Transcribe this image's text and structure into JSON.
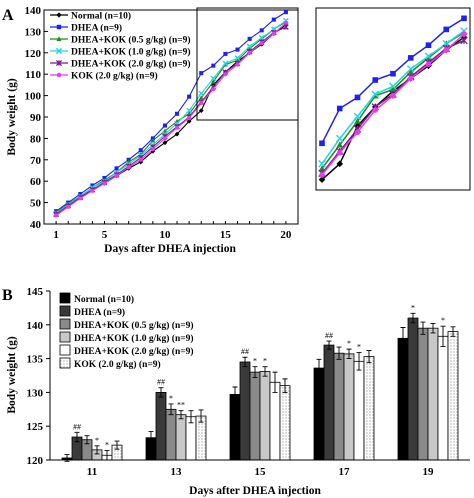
{
  "panel_a_letter": "A",
  "panel_b_letter": "B",
  "colors": {
    "normal": "#000000",
    "dhea": "#1f22ee",
    "kok05": "#1e8c1e",
    "kok10": "#22d6e0",
    "kok20": "#7a1e8a",
    "kok_only": "#e83ce8"
  },
  "chart_data": [
    {
      "type": "line",
      "panel": "A",
      "xlabel": "Days after DHEA injection",
      "ylabel": "Body weight (g)",
      "xlim": [
        0,
        21
      ],
      "ylim": [
        40,
        140
      ],
      "xticks": [
        1,
        5,
        10,
        15,
        20
      ],
      "yticks": [
        40,
        50,
        60,
        70,
        80,
        90,
        100,
        110,
        120,
        130,
        140
      ],
      "legend_position": "top-left",
      "inset": "zoom of days 12-20, top-right",
      "x": [
        1,
        2,
        3,
        4,
        5,
        6,
        7,
        8,
        9,
        10,
        11,
        12,
        13,
        14,
        15,
        16,
        17,
        18,
        19,
        20
      ],
      "series": [
        {
          "name": "Normal (n=10)",
          "marker": "diamond",
          "color": "#000000",
          "values": [
            45,
            48.5,
            52.5,
            56,
            59,
            62.5,
            66,
            69,
            74,
            78,
            82,
            88,
            93,
            105,
            111,
            116,
            120,
            124,
            129,
            133
          ]
        },
        {
          "name": "DHEA (n=9)",
          "marker": "square",
          "color": "#1f22ee",
          "values": [
            46,
            50,
            54,
            58,
            61.5,
            66,
            70,
            74.5,
            80,
            86,
            91.5,
            99.5,
            110.5,
            114,
            119.5,
            121.5,
            126.5,
            130.5,
            135.5,
            139
          ]
        },
        {
          "name": "DHEA+KOK (0.5 g/kg) (n=9)",
          "marker": "triangle",
          "color": "#1e8c1e",
          "values": [
            45.5,
            49.5,
            53,
            57,
            60.5,
            64,
            69,
            72.5,
            79,
            83.5,
            88,
            91.5,
            99,
            106.5,
            114.5,
            116.5,
            122,
            126.5,
            131,
            134.5
          ]
        },
        {
          "name": "DHEA+KOK (1.0 g/kg) (n=9)",
          "marker": "x",
          "color": "#22d6e0",
          "values": [
            45,
            49,
            53,
            57,
            60,
            64,
            68,
            72,
            77,
            82,
            87,
            93,
            101,
            108,
            115,
            117.5,
            123,
            127,
            131,
            135
          ]
        },
        {
          "name": "DHEA+KOK (2.0 g/kg) (n=9)",
          "marker": "star",
          "color": "#7a1e8a",
          "values": [
            44.5,
            48.5,
            52.5,
            56,
            59.5,
            63,
            67,
            71,
            76,
            81,
            85.5,
            90,
            97,
            104,
            111,
            115,
            120.5,
            125,
            129.5,
            132
          ]
        },
        {
          "name": "KOK (2.0 g/kg) (n=9)",
          "marker": "circle",
          "color": "#e83ce8",
          "values": [
            44,
            48,
            52,
            55.5,
            59,
            62.5,
            66.5,
            70,
            75,
            80,
            85,
            89.5,
            96.5,
            103,
            110,
            114.5,
            120,
            124.5,
            129,
            134
          ]
        }
      ]
    },
    {
      "type": "bar",
      "panel": "B",
      "xlabel": "Days after DHEA injection",
      "ylabel": "Body weight (g)",
      "ylim": [
        120,
        145
      ],
      "yticks": [
        120,
        125,
        130,
        135,
        140,
        145
      ],
      "legend_position": "top-left",
      "categories": [
        "11",
        "13",
        "15",
        "17",
        "19"
      ],
      "series": [
        {
          "name": "Normal (n=10)",
          "fill": "black",
          "values": [
            120.3,
            123.3,
            129.7,
            133.6,
            138
          ],
          "errors": [
            0.5,
            0.9,
            1.1,
            1.3,
            1.6
          ],
          "marks": [
            "",
            "",
            "",
            "",
            ""
          ]
        },
        {
          "name": "DHEA (n=9)",
          "fill": "dark-gray",
          "values": [
            123.4,
            130,
            134.5,
            137,
            141
          ],
          "errors": [
            0.7,
            0.7,
            0.7,
            0.6,
            0.7
          ],
          "marks": [
            "##",
            "##",
            "##",
            "##",
            "*"
          ]
        },
        {
          "name": "DHEA+KOK (0.5 g/kg) (n=9)",
          "fill": "gray",
          "values": [
            123,
            127.5,
            133,
            135.8,
            139.5
          ],
          "errors": [
            0.6,
            0.8,
            0.8,
            0.9,
            0.9
          ],
          "marks": [
            "",
            "*",
            "*",
            "",
            ""
          ]
        },
        {
          "name": "DHEA+KOK (1.0 g/kg) (n=9)",
          "fill": "light-gray",
          "values": [
            121.5,
            126.7,
            133.1,
            135.7,
            139.5
          ],
          "errors": [
            0.6,
            0.6,
            0.7,
            0.7,
            0.7
          ],
          "marks": [
            "*",
            "**",
            "*",
            "*",
            ""
          ]
        },
        {
          "name": "DHEA+KOK (2.0 g/kg) (n=9)",
          "fill": "white",
          "values": [
            120.7,
            126.4,
            131.5,
            134.6,
            138.3
          ],
          "errors": [
            0.7,
            0.9,
            1.5,
            1.3,
            1.5
          ],
          "marks": [
            "*",
            "",
            "",
            "*",
            "*"
          ]
        },
        {
          "name": "KOK (2.0 g/kg) (n=9)",
          "fill": "dotted",
          "values": [
            122.2,
            126.5,
            131,
            135.3,
            139
          ],
          "errors": [
            0.6,
            0.9,
            1.0,
            0.9,
            0.7
          ],
          "marks": [
            "",
            "",
            "",
            "",
            ""
          ]
        }
      ]
    }
  ]
}
